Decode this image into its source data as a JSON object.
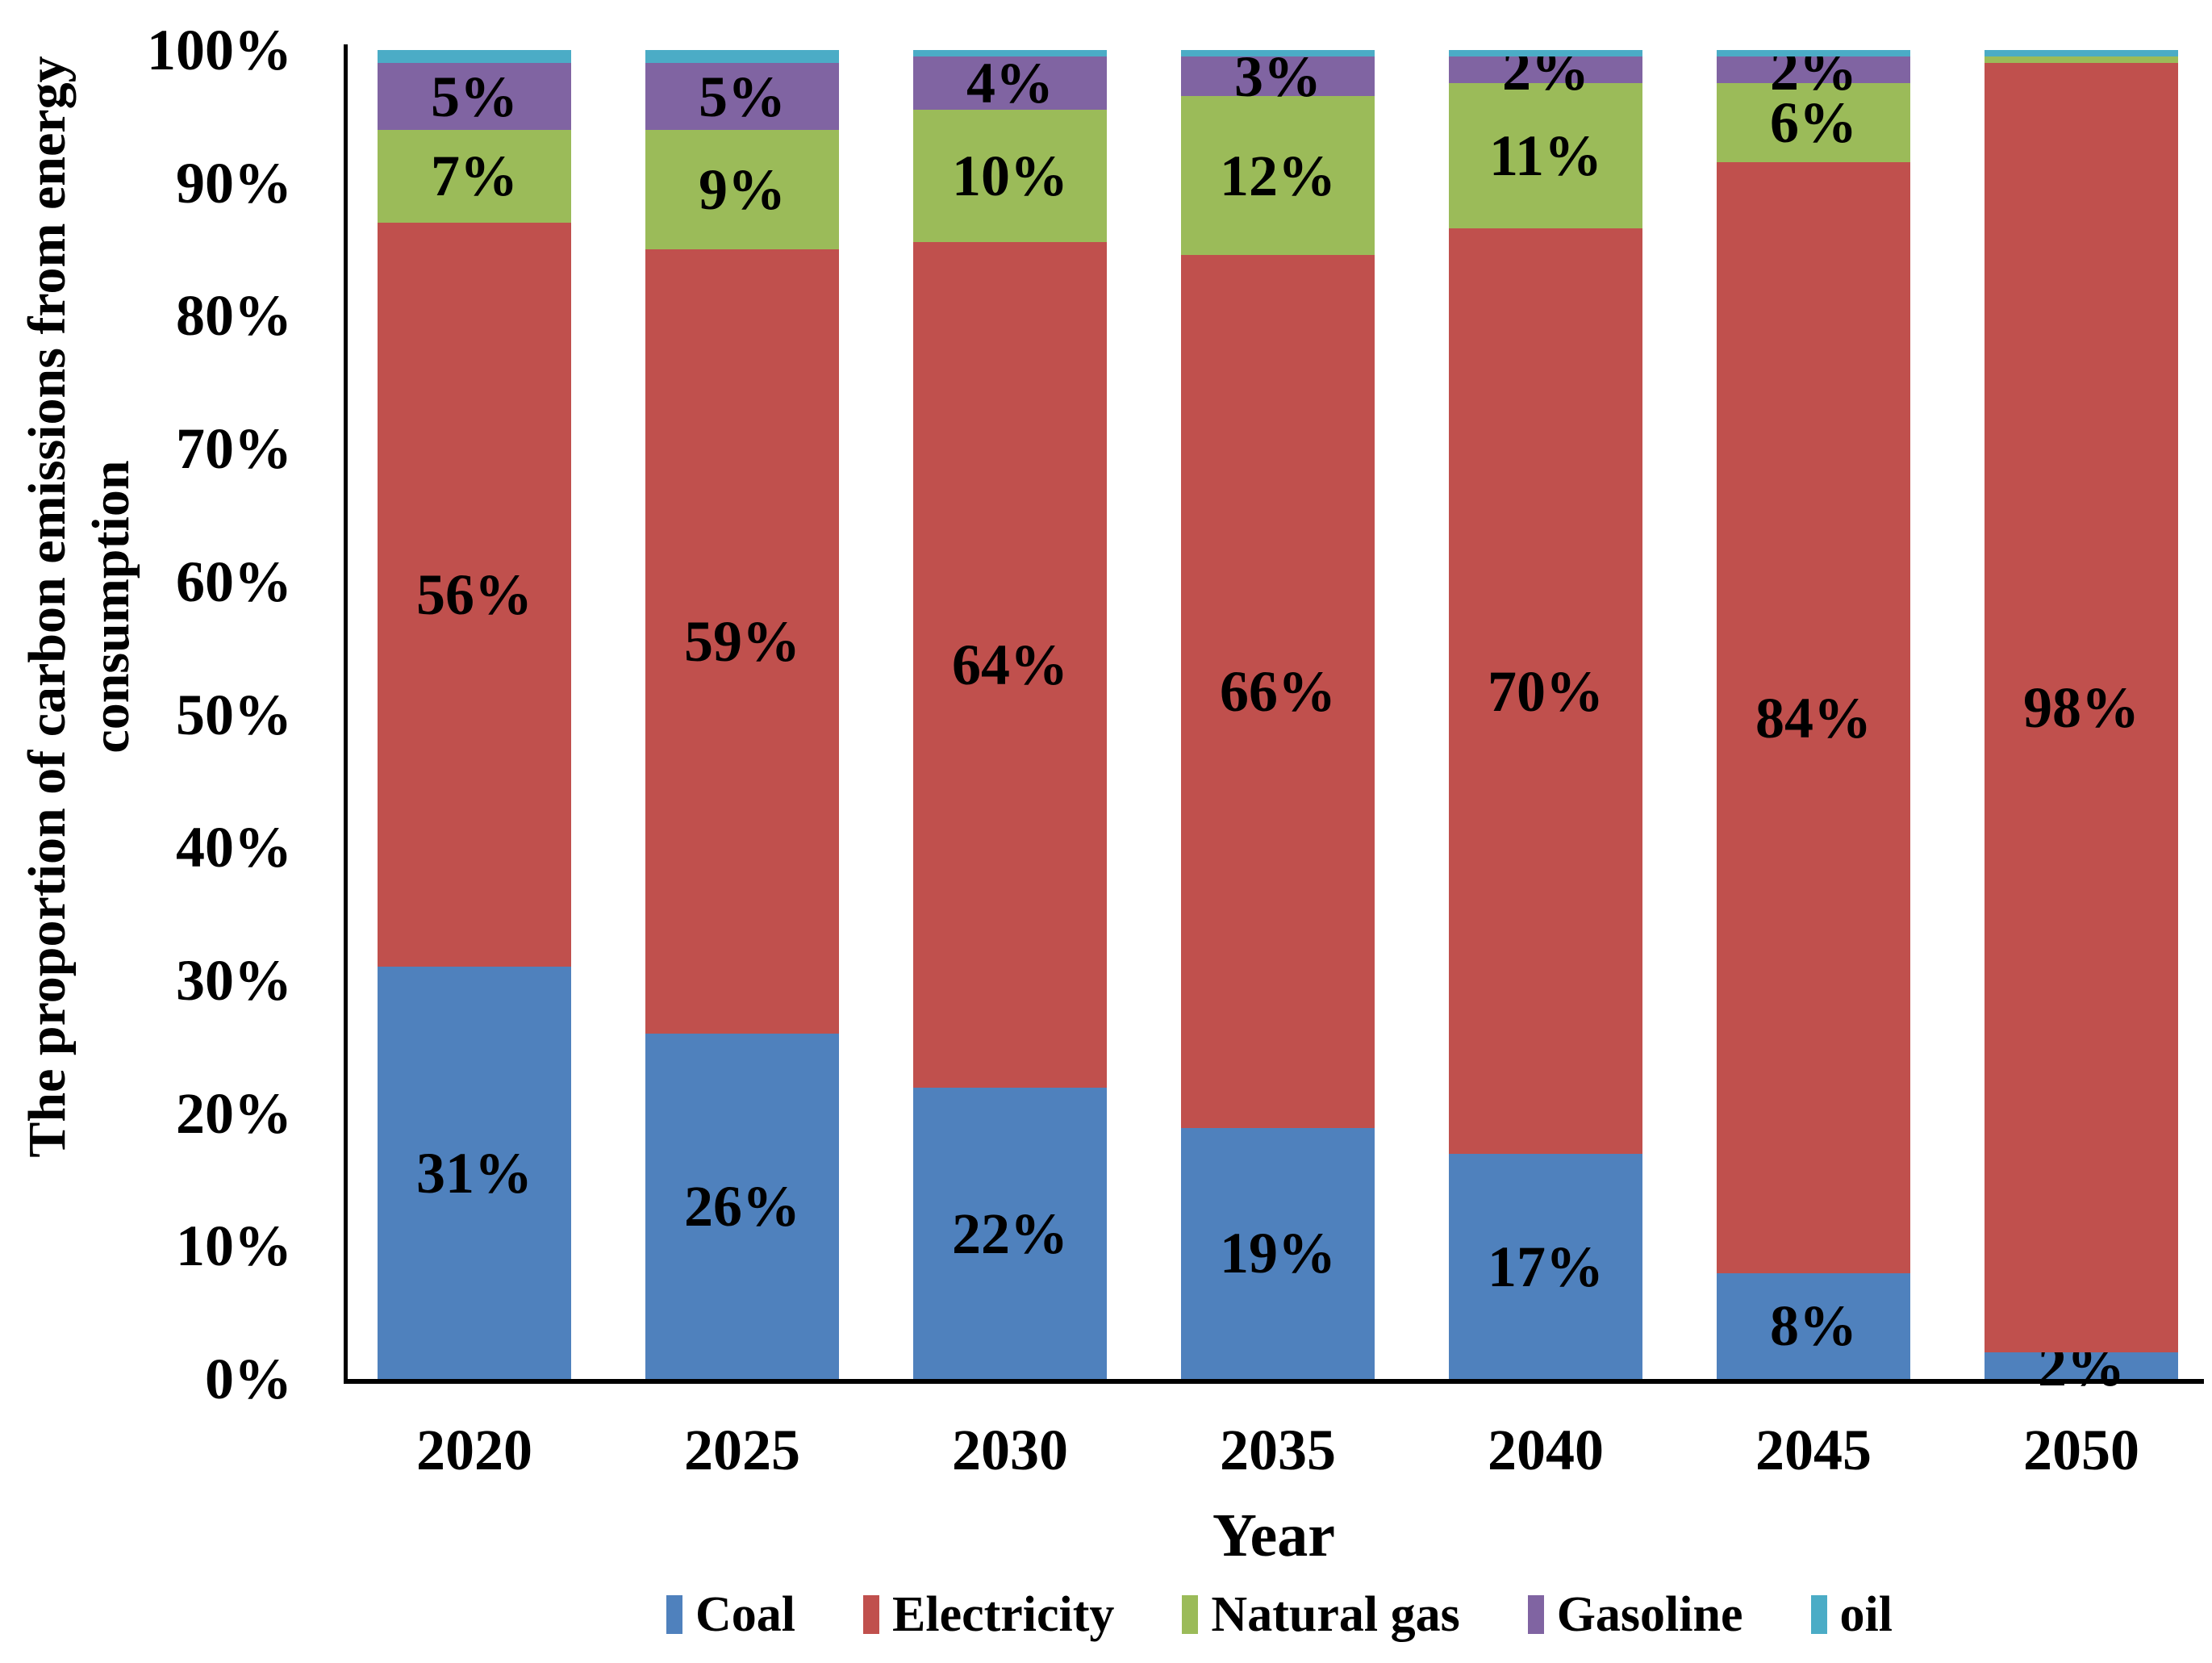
{
  "chart_data": {
    "type": "bar",
    "stacked": true,
    "percent_stacked": true,
    "title": "",
    "xlabel": "Year",
    "ylabel": "The proportion of carbon emissions from energy consumption",
    "ylabel_lines": [
      "The proportion of carbon emissions from energy",
      "consumption"
    ],
    "ylim": [
      0,
      100
    ],
    "ytick_step": 10,
    "y_tick_labels": [
      "0%",
      "10%",
      "20%",
      "30%",
      "40%",
      "50%",
      "60%",
      "70%",
      "80%",
      "90%",
      "100%"
    ],
    "grid": false,
    "legend_position": "bottom",
    "categories": [
      "2020",
      "2025",
      "2030",
      "2035",
      "2040",
      "2045",
      "2050"
    ],
    "series": [
      {
        "name": "Coal",
        "color": "#4F81BD",
        "values": [
          31,
          26,
          22,
          19,
          17,
          8,
          2
        ],
        "labels": [
          "31%",
          "26%",
          "22%",
          "19%",
          "17%",
          "8%",
          "2%"
        ]
      },
      {
        "name": "Electricity",
        "color": "#C0504D",
        "values": [
          56,
          59,
          64,
          66,
          70,
          84,
          98
        ],
        "labels": [
          "56%",
          "59%",
          "64%",
          "66%",
          "70%",
          "84%",
          "98%"
        ]
      },
      {
        "name": "Natural gas",
        "color": "#9BBB59",
        "values": [
          7,
          9,
          10,
          12,
          11,
          6,
          0.5
        ],
        "labels": [
          "7%",
          "9%",
          "10%",
          "12%",
          "11%",
          "6%",
          ""
        ]
      },
      {
        "name": "Gasoline",
        "color": "#8064A2",
        "values": [
          5,
          5,
          4,
          3,
          2,
          2,
          0
        ],
        "labels": [
          "5%",
          "5%",
          "4%",
          "3%",
          "2%",
          "2%",
          ""
        ]
      },
      {
        "name": "oil",
        "color": "#4BACC6",
        "values": [
          1,
          1,
          0.5,
          0.5,
          0.5,
          0.5,
          0.5
        ],
        "labels": [
          "",
          "",
          "",
          "",
          "",
          "",
          ""
        ]
      }
    ],
    "legend": [
      {
        "label": "Coal",
        "color": "#4F81BD"
      },
      {
        "label": "Electricity",
        "color": "#C0504D"
      },
      {
        "label": "Natural gas",
        "color": "#9BBB59"
      },
      {
        "label": "Gasoline",
        "color": "#8064A2"
      },
      {
        "label": "oil",
        "color": "#4BACC6"
      }
    ]
  },
  "layout_colors": {
    "axis": "#000000",
    "text": "#000000",
    "background": "#FFFFFF"
  }
}
